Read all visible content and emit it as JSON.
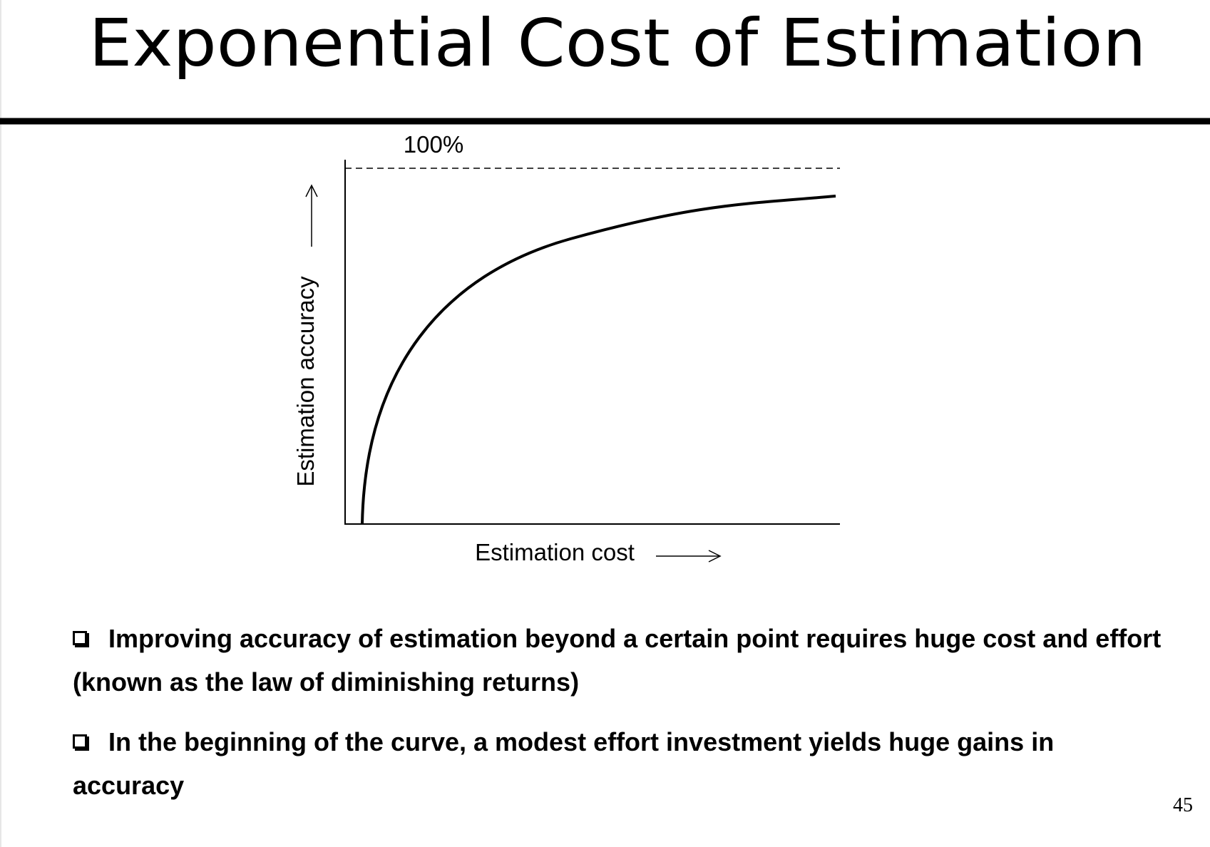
{
  "title": "Exponential Cost of Estimation",
  "diagram": {
    "limit_label": "100%",
    "y_label": "Estimation accuracy",
    "x_label": "Estimation cost"
  },
  "bullets": [
    "Improving accuracy of estimation beyond a certain point requires huge cost and effort (known as the law of diminishing returns)",
    "In the beginning of the curve, a modest effort investment yields huge gains in accuracy"
  ],
  "page_number": "45"
}
